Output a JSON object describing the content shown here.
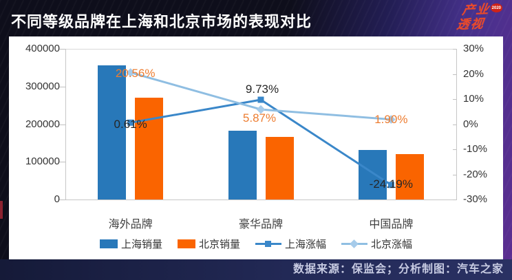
{
  "page": {
    "title": "不同等级品牌在上海和北京市场的表现对比",
    "footer": "数据来源：保监会；分析制图：汽车之家",
    "logo": {
      "line1": "产业",
      "line2": "透视",
      "badge": "2020"
    }
  },
  "chart_data": {
    "type": "bar",
    "subtype": "bar+line combo, dual axis",
    "categories": [
      "海外品牌",
      "豪华品牌",
      "中国品牌"
    ],
    "series": [
      {
        "name": "上海销量",
        "kind": "bar",
        "axis": "left",
        "color": "#2878b9",
        "values": [
          357000,
          183000,
          132000
        ]
      },
      {
        "name": "北京销量",
        "kind": "bar",
        "axis": "left",
        "color": "#fa6400",
        "values": [
          271000,
          166000,
          120000
        ]
      },
      {
        "name": "上海涨幅",
        "kind": "line",
        "axis": "right",
        "color": "#3a87c9",
        "marker": "square",
        "label_color": "#262626",
        "values": [
          0.61,
          9.73,
          -24.19
        ]
      },
      {
        "name": "北京涨幅",
        "kind": "line",
        "axis": "right",
        "color": "#8fbee2",
        "marker": "diamond",
        "label_color": "#ed7d31",
        "values": [
          20.56,
          5.87,
          1.9
        ]
      }
    ],
    "left_axis": {
      "min": 0,
      "max": 400000,
      "ticks": [
        "400000",
        "300000",
        "200000",
        "100000",
        "0"
      ]
    },
    "right_axis": {
      "min": -30,
      "max": 30,
      "ticks": [
        "30%",
        "20%",
        "10%",
        "0%",
        "-10%",
        "-20%",
        "-30%"
      ]
    },
    "legend": [
      "上海销量",
      "北京销量",
      "上海涨幅",
      "北京涨幅"
    ],
    "grid": false,
    "legend_position": "bottom"
  }
}
